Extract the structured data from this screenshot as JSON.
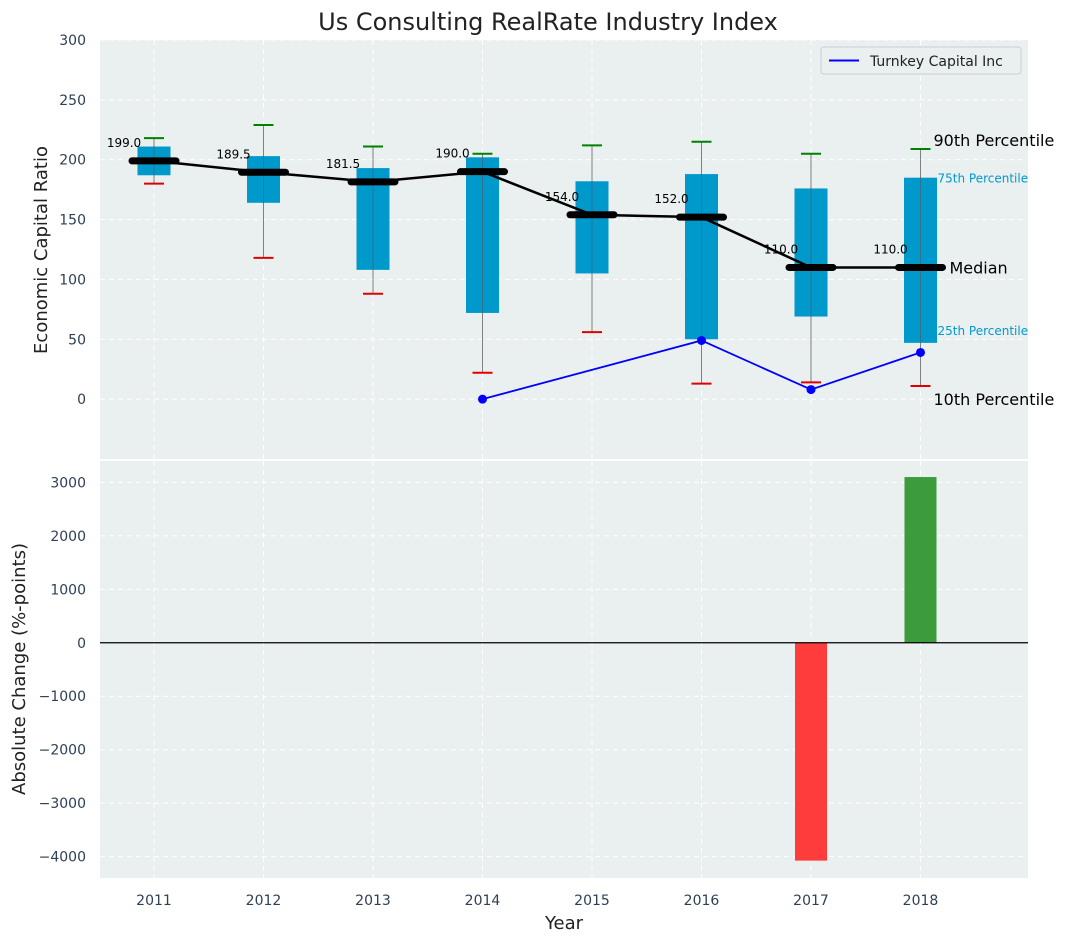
{
  "chart_data": [
    {
      "type": "box",
      "title": "Us Consulting RealRate Industry Index",
      "ylabel": "Economic Capital Ratio",
      "ylim": [
        -50,
        300
      ],
      "yticks": [
        0,
        50,
        100,
        150,
        200,
        250,
        300
      ],
      "grid": true,
      "legend": {
        "placement": "top-right",
        "entries": [
          "Turnkey Capital Inc"
        ]
      },
      "categories": [
        "2011",
        "2012",
        "2013",
        "2014",
        "2015",
        "2016",
        "2017",
        "2018"
      ],
      "p10": [
        180,
        118,
        88,
        22,
        56,
        13,
        14,
        11
      ],
      "p25": [
        187,
        164,
        108,
        72,
        105,
        50,
        69,
        47
      ],
      "median": [
        199.0,
        189.5,
        181.5,
        190.0,
        154.0,
        152.0,
        110.0,
        110.0
      ],
      "p75": [
        211,
        203,
        193,
        202,
        182,
        188,
        176,
        185
      ],
      "p90": [
        218,
        229,
        211,
        205,
        212,
        215,
        205,
        209
      ],
      "median_labels": [
        "199.0",
        "189.5",
        "181.5",
        "190.0",
        "154.0",
        "152.0",
        "110.0",
        "110.0"
      ],
      "series": [
        {
          "name": "Turnkey Capital Inc",
          "x": [
            "2014",
            "2016",
            "2017",
            "2018"
          ],
          "values": [
            0,
            49,
            8,
            39
          ],
          "color": "#0000ff"
        }
      ],
      "annotations": {
        "p90": "90th Percentile",
        "p75": "75th Percentile",
        "median": "Median",
        "p25": "25th Percentile",
        "p10": "10th Percentile"
      },
      "colors": {
        "box": "#0099cc",
        "whisker_top": "#008000",
        "whisker_bottom": "#e00000",
        "median": "#000000"
      }
    },
    {
      "type": "bar",
      "xlabel": "Year",
      "ylabel": "Absolute Change (%-points)",
      "ylim": [
        -4400,
        3400
      ],
      "yticks": [
        -4000,
        -3000,
        -2000,
        -1000,
        0,
        1000,
        2000,
        3000
      ],
      "grid": true,
      "categories": [
        "2011",
        "2012",
        "2013",
        "2014",
        "2015",
        "2016",
        "2017",
        "2018"
      ],
      "values": [
        null,
        null,
        null,
        null,
        null,
        null,
        -4075,
        3100
      ],
      "colors": {
        "negative": "#ff3c3c",
        "positive": "#3c9c3c"
      }
    }
  ]
}
